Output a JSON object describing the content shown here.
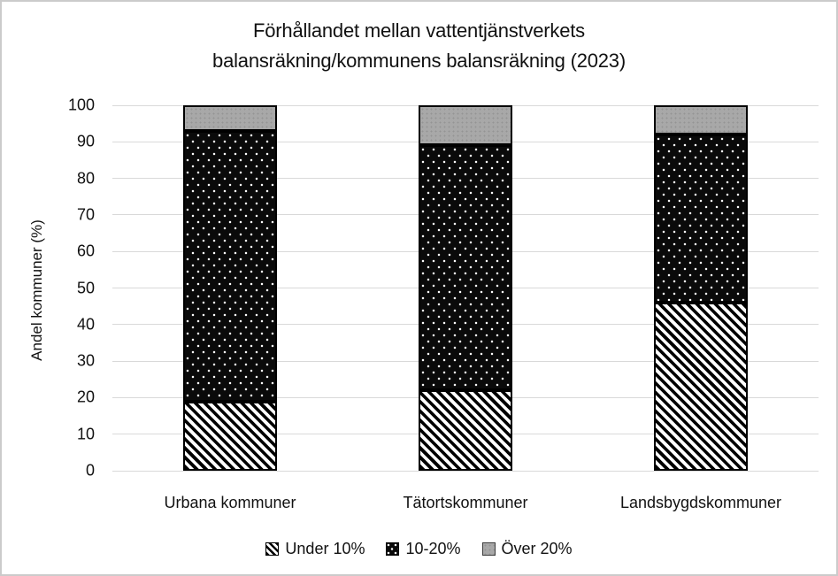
{
  "frame": {
    "background_color": "#ffffff",
    "border_color": "#cbcbcb"
  },
  "chart_data": {
    "type": "bar",
    "stacked": true,
    "title": "Förhållandet mellan vattentjänstverkets balansräkning/kommunens balansräkning (2023)",
    "title_lines": [
      "Förhållandet mellan vattentjänstverkets",
      "balansräkning/kommunens balansräkning (2023)"
    ],
    "xlabel": "",
    "ylabel": "Andel kommuner (%)",
    "ylim": [
      0,
      100
    ],
    "y_ticks": [
      0,
      10,
      20,
      30,
      40,
      50,
      60,
      70,
      80,
      90,
      100
    ],
    "grid": true,
    "gridline_color": "#d9d9d9",
    "legend_position": "bottom",
    "categories": [
      "Urbana kommuner",
      "Tätortskommuner",
      "Landsbygdskommuner"
    ],
    "series": [
      {
        "name": "Under 10%",
        "pattern": "diagonal-hatch-black-on-white",
        "values": [
          19,
          22,
          46
        ]
      },
      {
        "name": "10-20%",
        "pattern": "white-dots-on-black",
        "values": [
          74,
          67,
          46
        ]
      },
      {
        "name": "Över 20%",
        "pattern": "speckled-gray",
        "color": "#a8a8a8",
        "values": [
          7,
          11,
          8
        ]
      }
    ],
    "bar_outline_color": "#000000",
    "text_color": "#111111"
  }
}
